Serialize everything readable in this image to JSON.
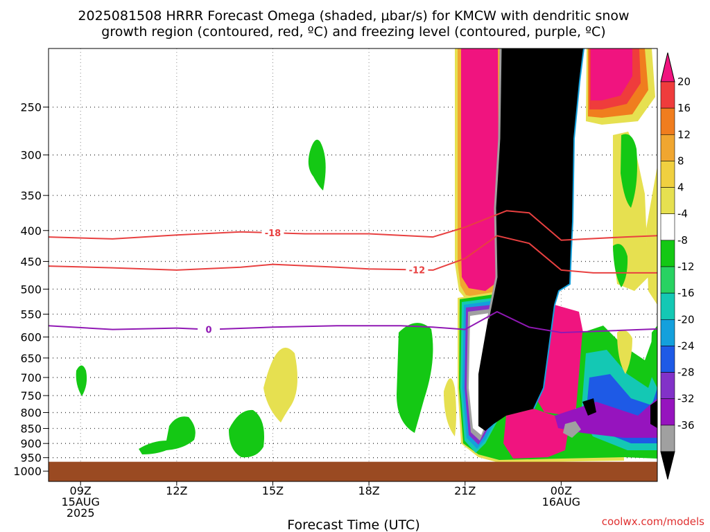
{
  "chart_data": {
    "type": "heatmap",
    "title": "2025081508 HRRR Forecast Omega (shaded, μbar/s) for KMCW with dendritic snow growth region (contoured, red, ºC) and freezing level (contoured, purple, ºC)",
    "title_lines": [
      "2025081508 HRRR Forecast Omega (shaded, μbar/s) for KMCW with dendritic snow",
      "growth region (contoured, red, ºC) and freezing level (contoured, purple, ºC)"
    ],
    "xlabel": "Forecast Time (UTC)",
    "ylabel": "",
    "credit": "coolwx.com/models",
    "x_range_hours": [
      8,
      27
    ],
    "y_range_hpa": [
      1040,
      200
    ],
    "y_scale": "log",
    "grid": true,
    "x_ticks": [
      {
        "hour": 9,
        "lines": [
          "09Z",
          "15AUG",
          "2025"
        ]
      },
      {
        "hour": 12,
        "lines": [
          "12Z"
        ]
      },
      {
        "hour": 15,
        "lines": [
          "15Z"
        ]
      },
      {
        "hour": 18,
        "lines": [
          "18Z"
        ]
      },
      {
        "hour": 21,
        "lines": [
          "21Z"
        ]
      },
      {
        "hour": 24,
        "lines": [
          "00Z",
          "16AUG"
        ]
      }
    ],
    "y_ticks": [
      250,
      300,
      350,
      400,
      450,
      500,
      550,
      600,
      650,
      700,
      750,
      800,
      850,
      900,
      950,
      1000
    ],
    "colorbar": {
      "labels": [
        "20",
        "16",
        "12",
        "8",
        "4",
        "-4",
        "-8",
        "-12",
        "-16",
        "-20",
        "-24",
        "-28",
        "-32",
        "-36"
      ],
      "colors": [
        "#f0147f",
        "#ef3c3c",
        "#f07d1e",
        "#f0a630",
        "#f0d040",
        "#e6e050",
        "#ffffff",
        "#14c814",
        "#28d262",
        "#14c8b4",
        "#14a0dc",
        "#1e5ae6",
        "#8232c8",
        "#9614be",
        "#a0a0a0",
        "#000000"
      ]
    },
    "ground": {
      "pressure_hpa": 965,
      "color": "#9a4a22"
    },
    "contours": [
      {
        "value": "-18",
        "color": "#e84040",
        "label_at_hour": 15,
        "points": [
          [
            8,
            410
          ],
          [
            10,
            413
          ],
          [
            12,
            407
          ],
          [
            14,
            402
          ],
          [
            16,
            405
          ],
          [
            18,
            405
          ],
          [
            20,
            410
          ],
          [
            21,
            395
          ],
          [
            22.3,
            371
          ],
          [
            23,
            374
          ],
          [
            24,
            415
          ],
          [
            26,
            410
          ],
          [
            27,
            408
          ]
        ]
      },
      {
        "value": "-12",
        "color": "#e84040",
        "label_at_hour": 19.5,
        "points": [
          [
            8,
            458
          ],
          [
            10,
            461
          ],
          [
            12,
            465
          ],
          [
            14,
            460
          ],
          [
            15,
            455
          ],
          [
            17,
            460
          ],
          [
            18,
            463
          ],
          [
            20,
            465
          ],
          [
            21,
            445
          ],
          [
            22,
            408
          ],
          [
            23,
            420
          ],
          [
            24,
            465
          ],
          [
            25,
            470
          ],
          [
            27,
            470
          ]
        ]
      },
      {
        "value": "0",
        "color": "#9018b4",
        "label_at_hour": 13,
        "points": [
          [
            8,
            575
          ],
          [
            10,
            583
          ],
          [
            12,
            580
          ],
          [
            13,
            583
          ],
          [
            15,
            578
          ],
          [
            17,
            575
          ],
          [
            19,
            575
          ],
          [
            20,
            578
          ],
          [
            21,
            583
          ],
          [
            22,
            545
          ],
          [
            23,
            578
          ],
          [
            24,
            590
          ],
          [
            27,
            582
          ]
        ]
      }
    ]
  }
}
